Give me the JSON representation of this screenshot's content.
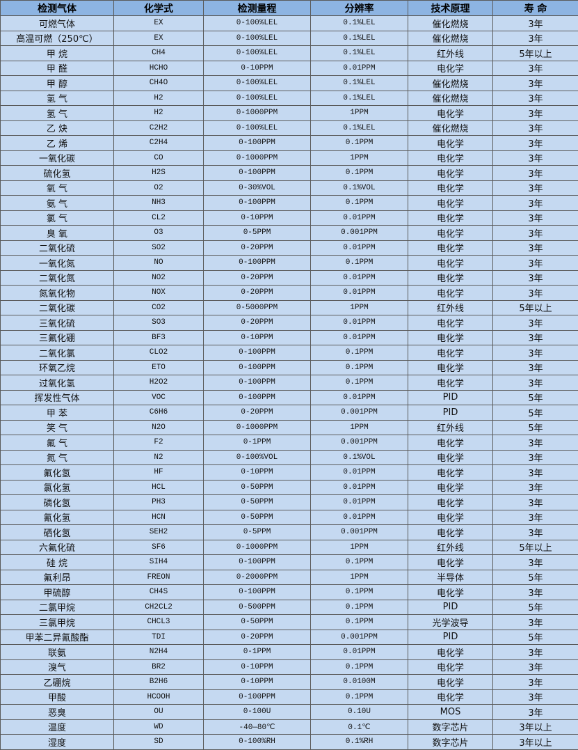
{
  "table": {
    "headers": [
      "检测气体",
      "化学式",
      "检测量程",
      "分辨率",
      "技术原理",
      "寿 命"
    ],
    "rows": [
      [
        "可燃气体",
        "EX",
        "0-100%LEL",
        "0.1%LEL",
        "催化燃烧",
        "3年"
      ],
      [
        "高温可燃（250℃）",
        "EX",
        "0-100%LEL",
        "0.1%LEL",
        "催化燃烧",
        "3年"
      ],
      [
        "甲 烷",
        "CH4",
        "0-100%LEL",
        "0.1%LEL",
        "红外线",
        "5年以上"
      ],
      [
        "甲 醛",
        "HCHO",
        "0-10PPM",
        "0.01PPM",
        "电化学",
        "3年"
      ],
      [
        "甲 醇",
        "CH4O",
        "0-100%LEL",
        "0.1%LEL",
        "催化燃烧",
        "3年"
      ],
      [
        "氢 气",
        "H2",
        "0-100%LEL",
        "0.1%LEL",
        "催化燃烧",
        "3年"
      ],
      [
        "氢 气",
        "H2",
        "0-1000PPM",
        "1PPM",
        "电化学",
        "3年"
      ],
      [
        "乙 炔",
        "C2H2",
        "0-100%LEL",
        "0.1%LEL",
        "催化燃烧",
        "3年"
      ],
      [
        "乙 烯",
        "C2H4",
        "0-100PPM",
        "0.1PPM",
        "电化学",
        "3年"
      ],
      [
        "一氧化碳",
        "CO",
        "0-1000PPM",
        "1PPM",
        "电化学",
        "3年"
      ],
      [
        "硫化氢",
        "H2S",
        "0-100PPM",
        "0.1PPM",
        "电化学",
        "3年"
      ],
      [
        "氧 气",
        "O2",
        "0-30%VOL",
        "0.1%VOL",
        "电化学",
        "3年"
      ],
      [
        "氨 气",
        "NH3",
        "0-100PPM",
        "0.1PPM",
        "电化学",
        "3年"
      ],
      [
        "氯 气",
        "CL2",
        "0-10PPM",
        "0.01PPM",
        "电化学",
        "3年"
      ],
      [
        "臭 氧",
        "O3",
        "0-5PPM",
        "0.001PPM",
        "电化学",
        "3年"
      ],
      [
        "二氧化硫",
        "SO2",
        "0-20PPM",
        "0.01PPM",
        "电化学",
        "3年"
      ],
      [
        "一氧化氮",
        "NO",
        "0-100PPM",
        "0.1PPM",
        "电化学",
        "3年"
      ],
      [
        "二氧化氮",
        "NO2",
        "0-20PPM",
        "0.01PPM",
        "电化学",
        "3年"
      ],
      [
        "氮氧化物",
        "NOX",
        "0-20PPM",
        "0.01PPM",
        "电化学",
        "3年"
      ],
      [
        "二氧化碳",
        "CO2",
        "0-5000PPM",
        "1PPM",
        "红外线",
        "5年以上"
      ],
      [
        "三氧化硫",
        "SO3",
        "0-20PPM",
        "0.01PPM",
        "电化学",
        "3年"
      ],
      [
        "三氟化硼",
        "BF3",
        "0-10PPM",
        "0.01PPM",
        "电化学",
        "3年"
      ],
      [
        "二氧化氯",
        "CLO2",
        "0-100PPM",
        "0.1PPM",
        "电化学",
        "3年"
      ],
      [
        "环氧乙烷",
        "ETO",
        "0-100PPM",
        "0.1PPM",
        "电化学",
        "3年"
      ],
      [
        "过氧化氢",
        "H2O2",
        "0-100PPM",
        "0.1PPM",
        "电化学",
        "3年"
      ],
      [
        "挥发性气体",
        "VOC",
        "0-100PPM",
        "0.01PPM",
        "PID",
        "5年"
      ],
      [
        "甲 苯",
        "C6H6",
        "0-20PPM",
        "0.001PPM",
        "PID",
        "5年"
      ],
      [
        "笑 气",
        "N2O",
        "0-1000PPM",
        "1PPM",
        "红外线",
        "5年"
      ],
      [
        "氟 气",
        "F2",
        "0-1PPM",
        "0.001PPM",
        "电化学",
        "3年"
      ],
      [
        "氮 气",
        "N2",
        "0-100%VOL",
        "0.1%VOL",
        "电化学",
        "3年"
      ],
      [
        "氟化氢",
        "HF",
        "0-10PPM",
        "0.01PPM",
        "电化学",
        "3年"
      ],
      [
        "氯化氢",
        "HCL",
        "0-50PPM",
        "0.01PPM",
        "电化学",
        "3年"
      ],
      [
        "磷化氢",
        "PH3",
        "0-50PPM",
        "0.01PPM",
        "电化学",
        "3年"
      ],
      [
        "氰化氢",
        "HCN",
        "0-50PPM",
        "0.01PPM",
        "电化学",
        "3年"
      ],
      [
        "硒化氢",
        "SEH2",
        "0-5PPM",
        "0.001PPM",
        "电化学",
        "3年"
      ],
      [
        "六氟化硫",
        "SF6",
        "0-1000PPM",
        "1PPM",
        "红外线",
        "5年以上"
      ],
      [
        "硅 烷",
        "SIH4",
        "0-100PPM",
        "0.1PPM",
        "电化学",
        "3年"
      ],
      [
        "氟利昂",
        "FREON",
        "0-2000PPM",
        "1PPM",
        "半导体",
        "5年"
      ],
      [
        "甲硫醇",
        "CH4S",
        "0-100PPM",
        "0.1PPM",
        "电化学",
        "3年"
      ],
      [
        "二氯甲烷",
        "CH2CL2",
        "0-500PPM",
        "0.1PPM",
        "PID",
        "5年"
      ],
      [
        "三氯甲烷",
        "CHCL3",
        "0-50PPM",
        "0.1PPM",
        "光学波导",
        "3年"
      ],
      [
        "甲苯二异氰酸酯",
        "TDI",
        "0-20PPM",
        "0.001PPM",
        "PID",
        "5年"
      ],
      [
        "联氨",
        "N2H4",
        "0-1PPM",
        "0.01PPM",
        "电化学",
        "3年"
      ],
      [
        "溴气",
        "BR2",
        "0-10PPM",
        "0.1PPM",
        "电化学",
        "3年"
      ],
      [
        "乙硼烷",
        "B2H6",
        "0-10PPM",
        "0.0100M",
        "电化学",
        "3年"
      ],
      [
        "甲酸",
        "HCOOH",
        "0-100PPM",
        "0.1PPM",
        "电化学",
        "3年"
      ],
      [
        "恶臭",
        "OU",
        "0-100U",
        "0.10U",
        "MOS",
        "3年"
      ],
      [
        "温度",
        "WD",
        "-40—80℃",
        "0.1℃",
        "数字芯片",
        "3年以上"
      ],
      [
        "湿度",
        "SD",
        "0-100%RH",
        "0.1%RH",
        "数字芯片",
        "3年以上"
      ]
    ]
  }
}
